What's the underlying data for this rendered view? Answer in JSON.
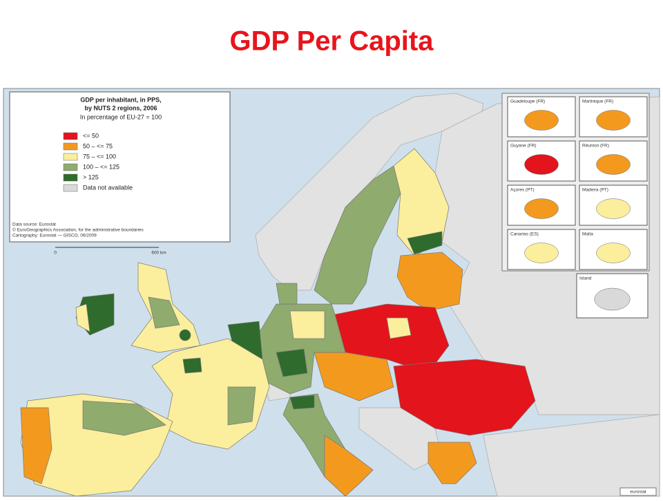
{
  "title": "GDP Per Capita",
  "map": {
    "legend": {
      "heading": [
        "GDP per inhabitant, in PPS,",
        "by NUTS 2 regions, 2006"
      ],
      "subtitle": "In percentage of EU-27 = 100",
      "items": [
        {
          "label": "<= 50",
          "color": "#e3141b"
        },
        {
          "label": "50 – <= 75",
          "color": "#f39a1e"
        },
        {
          "label": "75 – <= 100",
          "color": "#fbee9c"
        },
        {
          "label": "100 – <= 125",
          "color": "#8fab6e"
        },
        {
          "label": "> 125",
          "color": "#2f6b2c"
        },
        {
          "label": "Data not available",
          "color": "#d9d9d9"
        }
      ]
    },
    "source": [
      "Data source: Eurostat",
      "© EuroGeographics Association, for the administrative boundaries",
      "Cartography: Eurostat — GISCO, 06/2009"
    ],
    "scale": [
      "0",
      "600 km"
    ],
    "insets": [
      "Guadeloupe (FR)",
      "Martinique (FR)",
      "Guyane (FR)",
      "Réunion (FR)",
      "Açores (PT)",
      "Madeira (PT)",
      "Canarias (ES)",
      "Malta",
      "Island"
    ],
    "credit": "eurostat"
  }
}
